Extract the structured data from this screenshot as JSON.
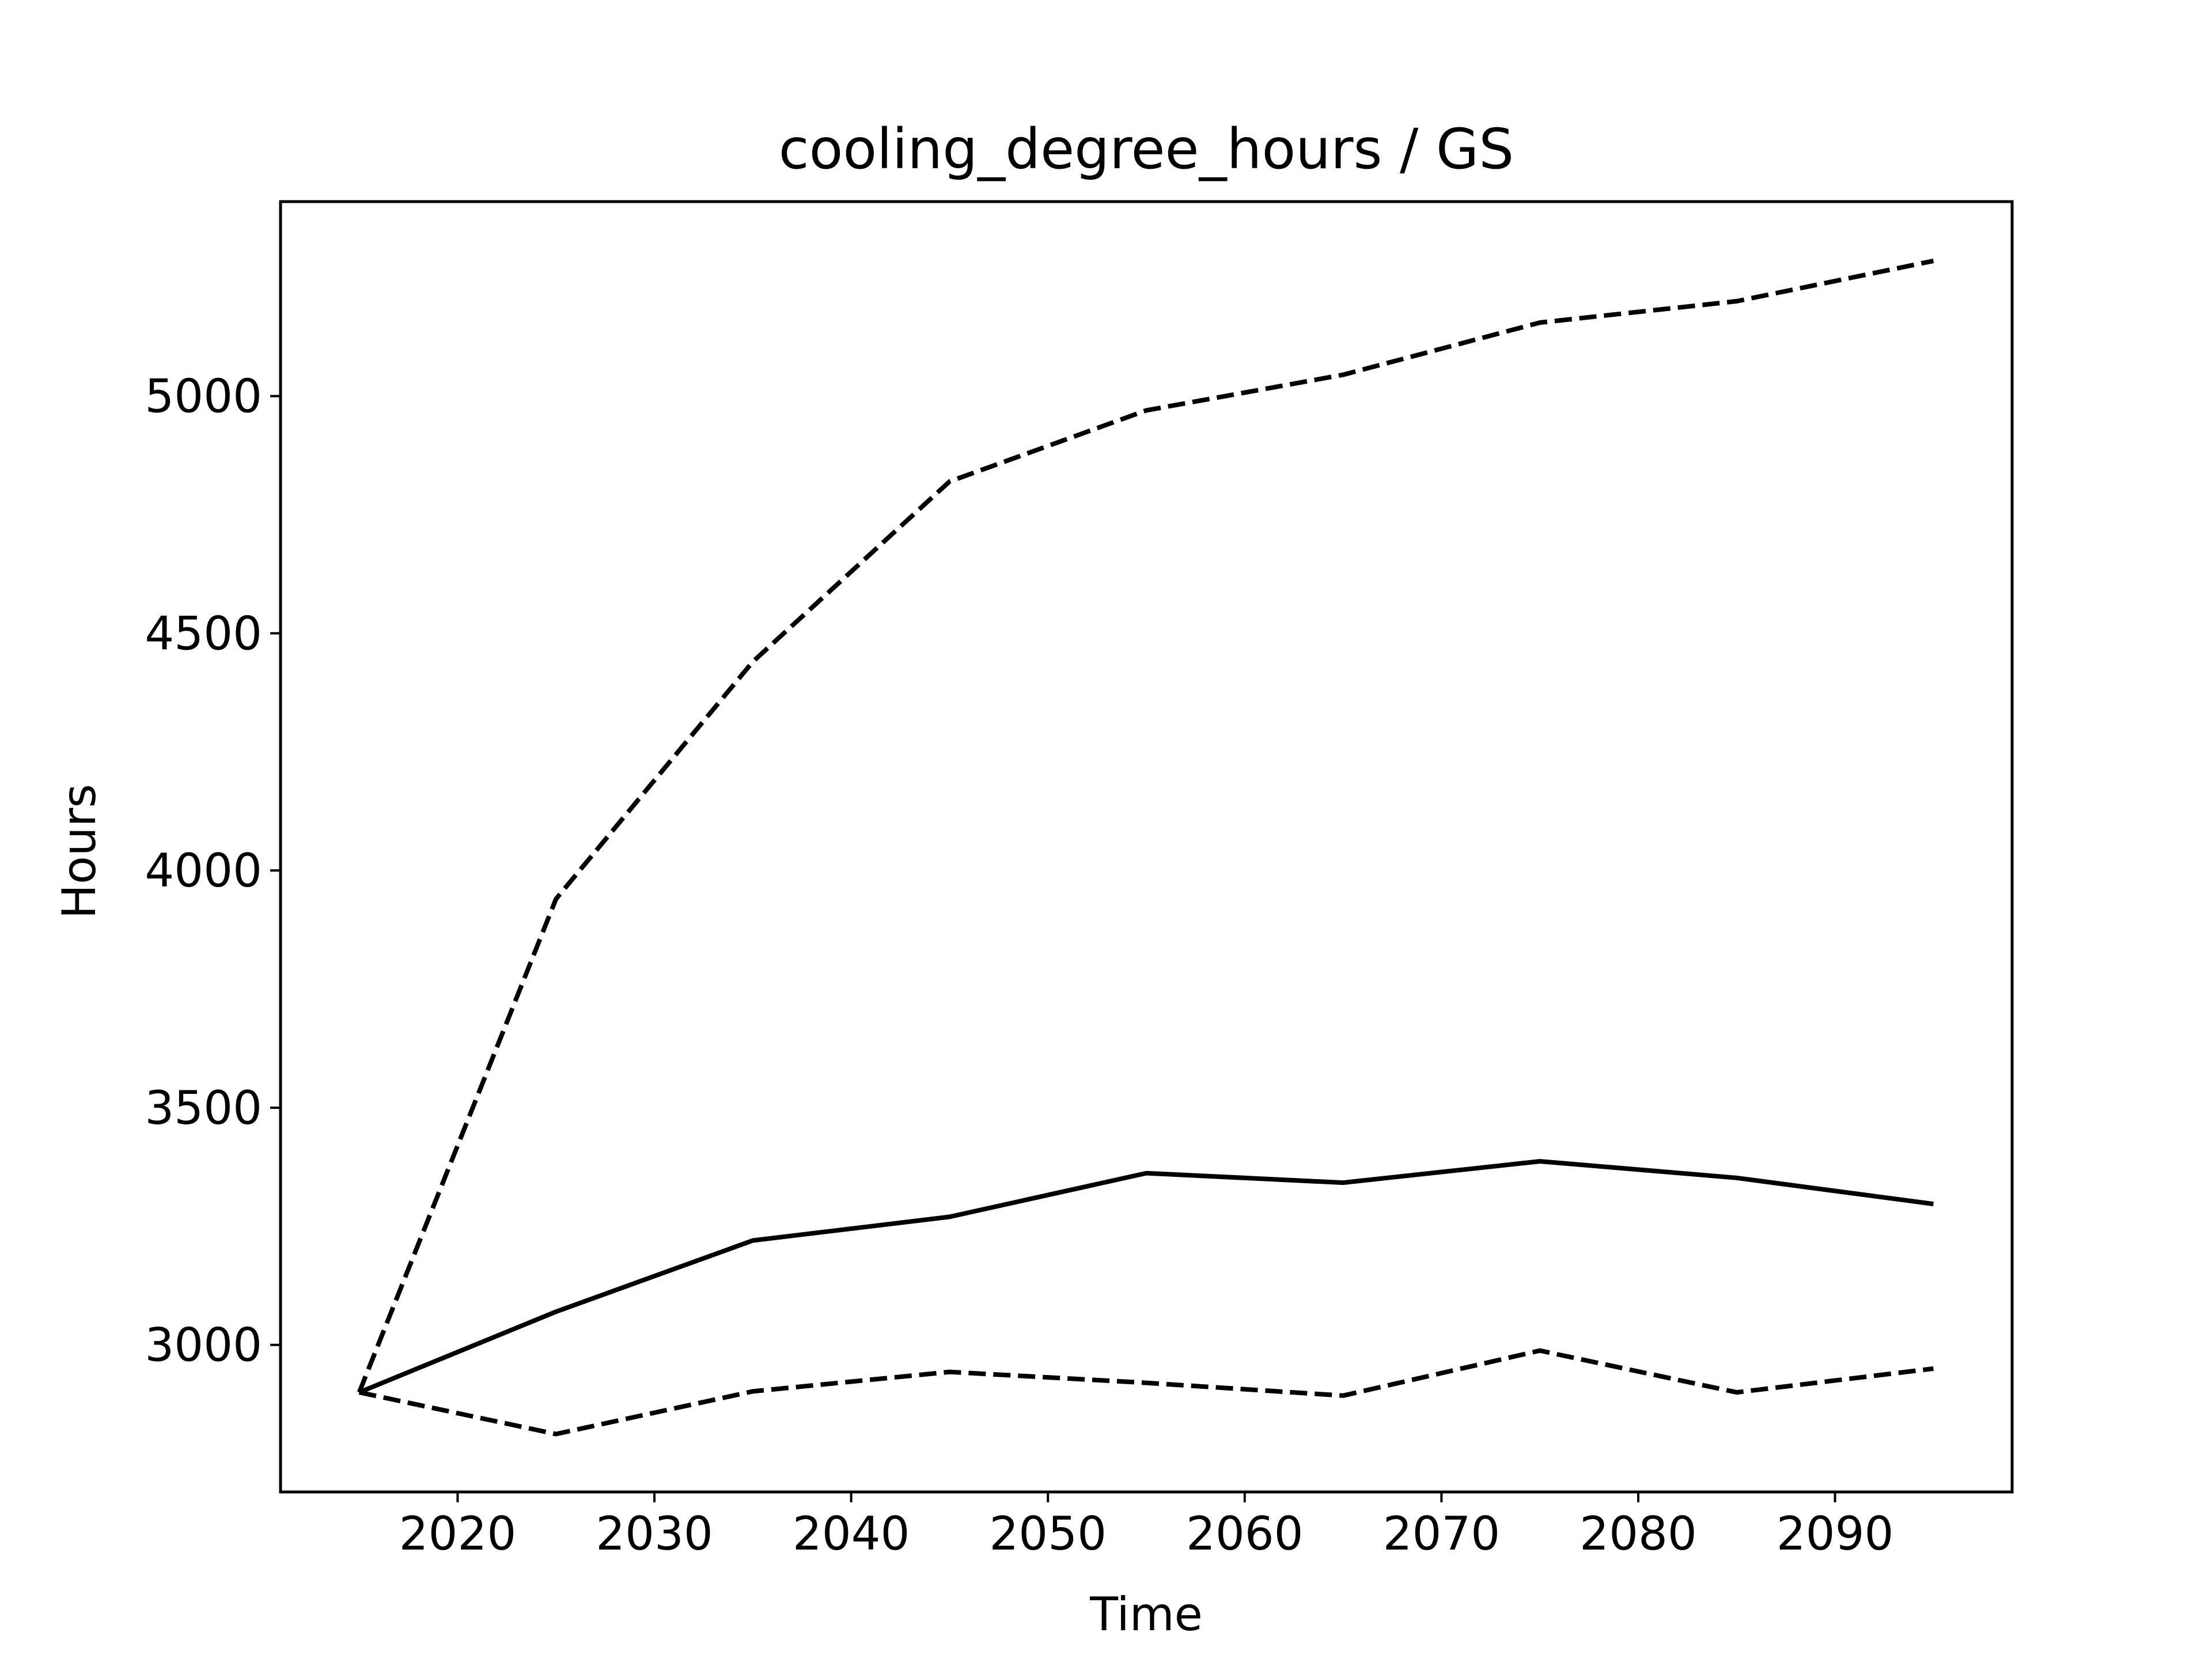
{
  "chart_data": {
    "type": "line",
    "title": "cooling_degree_hours / GS",
    "xlabel": "Time",
    "ylabel": "Hours",
    "xlim": [
      2011,
      2099
    ],
    "ylim": [
      2690,
      5410
    ],
    "grid": false,
    "x": [
      2015,
      2025,
      2035,
      2045,
      2055,
      2065,
      2075,
      2085,
      2095
    ],
    "xticks": [
      2020,
      2030,
      2040,
      2050,
      2060,
      2070,
      2080,
      2090
    ],
    "yticks": [
      3000,
      3500,
      4000,
      4500,
      5000
    ],
    "series": [
      {
        "style": "solid",
        "color": "#000000",
        "values": [
          2900,
          3070,
          3220,
          3270,
          3362,
          3342,
          3387,
          3352,
          3297
        ]
      },
      {
        "style": "dashed",
        "color": "#000000",
        "values": [
          2900,
          3940,
          4440,
          4820,
          4970,
          5045,
          5155,
          5200,
          5285
        ]
      },
      {
        "style": "dashed",
        "color": "#000000",
        "values": [
          2900,
          2812,
          2902,
          2943,
          2920,
          2893,
          2988,
          2900,
          2950
        ]
      }
    ]
  }
}
